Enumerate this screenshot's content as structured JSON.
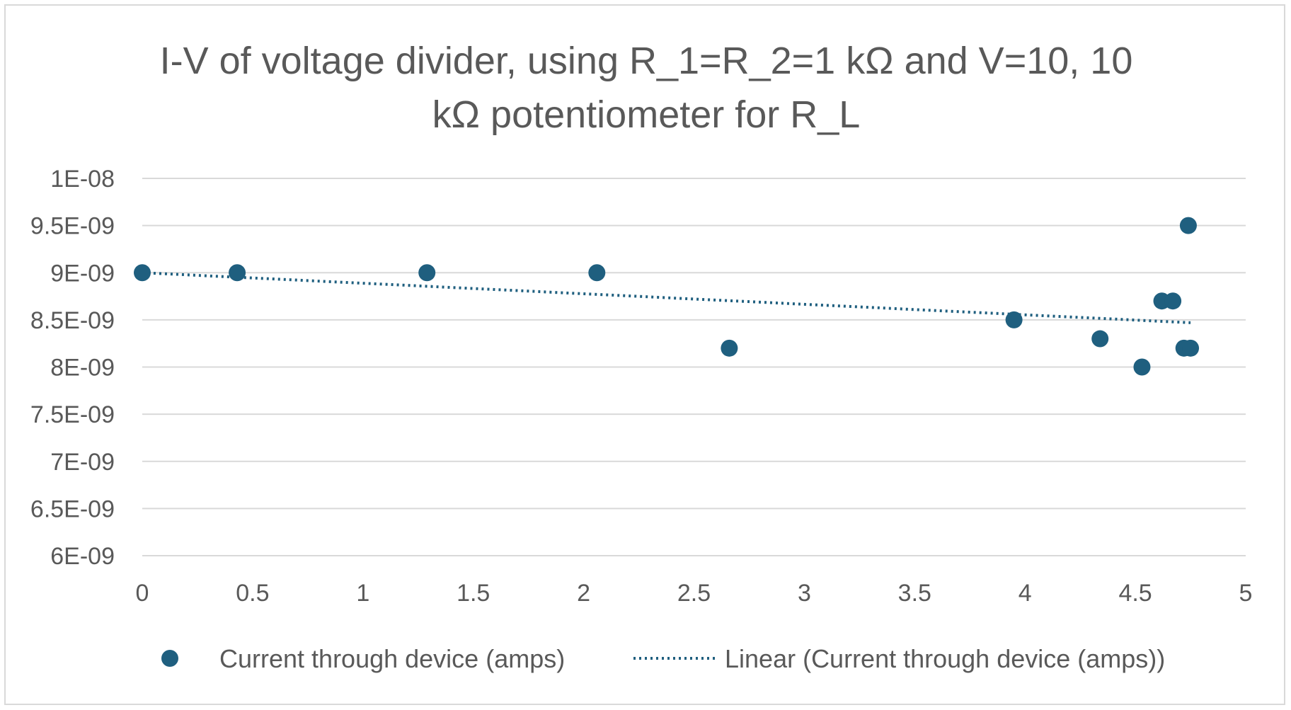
{
  "chart_data": {
    "type": "scatter",
    "title_lines": [
      "I-V of voltage divider, using R_1=R_2=1 kΩ and V=10, 10",
      "kΩ potentiometer for R_L"
    ],
    "xlim": [
      0,
      5
    ],
    "ylim": [
      6e-09,
      1e-08
    ],
    "x_ticks": [
      0,
      0.5,
      1,
      1.5,
      2,
      2.5,
      3,
      3.5,
      4,
      4.5,
      5
    ],
    "x_tick_labels": [
      "0",
      "0.5",
      "1",
      "1.5",
      "2",
      "2.5",
      "3",
      "3.5",
      "4",
      "4.5",
      "5"
    ],
    "y_ticks": [
      6e-09,
      6.5e-09,
      7e-09,
      7.5e-09,
      8e-09,
      8.5e-09,
      9e-09,
      9.5e-09,
      1e-08
    ],
    "y_tick_labels": [
      "6E-09",
      "6.5E-09",
      "7E-09",
      "7.5E-09",
      "8E-09",
      "8.5E-09",
      "9E-09",
      "9.5E-09",
      "1E-08"
    ],
    "grid": "horizontal",
    "legend_position": "bottom",
    "series": [
      {
        "name": "Current through device (amps)",
        "color": "#1f5f7f",
        "marker": "circle",
        "x": [
          0.0,
          0.43,
          1.29,
          2.06,
          2.66,
          3.95,
          4.34,
          4.53,
          4.62,
          4.67,
          4.72,
          4.74,
          4.75
        ],
        "y": [
          9e-09,
          9e-09,
          9e-09,
          9e-09,
          8.2e-09,
          8.5e-09,
          8.3e-09,
          8e-09,
          8.7e-09,
          8.7e-09,
          8.2e-09,
          9.5e-09,
          8.2e-09
        ]
      }
    ],
    "trendline": {
      "name": "Linear (Current through device (amps))",
      "type": "linear",
      "style": "dotted",
      "color": "#1f5f7f",
      "x": [
        0.0,
        4.75
      ],
      "y": [
        9e-09,
        8.47e-09
      ]
    }
  }
}
